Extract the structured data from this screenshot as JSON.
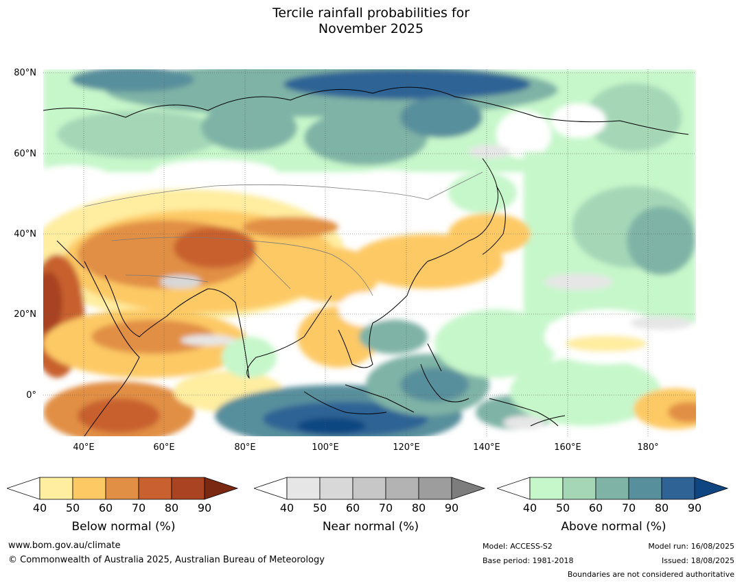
{
  "title": {
    "line1": "Tercile rainfall probabilities for",
    "line2": "November 2025"
  },
  "map": {
    "lat_labels": [
      "80°N",
      "60°N",
      "40°N",
      "20°N",
      "0°"
    ],
    "lon_labels": [
      "40°E",
      "60°E",
      "80°E",
      "100°E",
      "120°E",
      "140°E",
      "160°E",
      "180°"
    ],
    "lon_range": [
      30,
      192
    ],
    "lat_range": [
      -10,
      80
    ],
    "palettes": {
      "below": [
        "#ffeda0",
        "#fdc965",
        "#e18f45",
        "#c8602f",
        "#a94321",
        "#7b2812"
      ],
      "near": [
        "#e6e6e6",
        "#d8d8d8",
        "#c7c7c7",
        "#b3b3b3",
        "#9d9d9d",
        "#7d7d7d"
      ],
      "above": [
        "#c6f7ca",
        "#a5d7b7",
        "#7fb3a6",
        "#588f9c",
        "#2f6395",
        "#0f4681"
      ]
    }
  },
  "colorbars": [
    {
      "name": "Below normal (%)",
      "ticks": [
        "40",
        "50",
        "60",
        "70",
        "80",
        "90"
      ],
      "colors": [
        "#ffeda0",
        "#fdc965",
        "#e18f45",
        "#c8602f",
        "#a94321",
        "#7b2812"
      ],
      "low_end": "#ffffff"
    },
    {
      "name": "Near normal (%)",
      "ticks": [
        "40",
        "50",
        "60",
        "70",
        "80",
        "90"
      ],
      "colors": [
        "#e6e6e6",
        "#d8d8d8",
        "#c7c7c7",
        "#b3b3b3",
        "#9d9d9d",
        "#7d7d7d"
      ],
      "low_end": "#ffffff"
    },
    {
      "name": "Above normal (%)",
      "ticks": [
        "40",
        "50",
        "60",
        "70",
        "80",
        "90"
      ],
      "colors": [
        "#c6f7ca",
        "#a5d7b7",
        "#7fb3a6",
        "#588f9c",
        "#2f6395",
        "#0f4681"
      ],
      "low_end": "#ffffff"
    }
  ],
  "footer": {
    "website": "www.bom.gov.au/climate",
    "copyright": "© Commonwealth of Australia 2025, Australian Bureau of Meteorology",
    "model": "Model: ACCESS-S2",
    "base_period": "Base period: 1981-2018",
    "model_run": "Model run: 16/08/2025",
    "issued": "Issued: 18/08/2025",
    "disclaimer": "Boundaries are not considered authoritative"
  }
}
